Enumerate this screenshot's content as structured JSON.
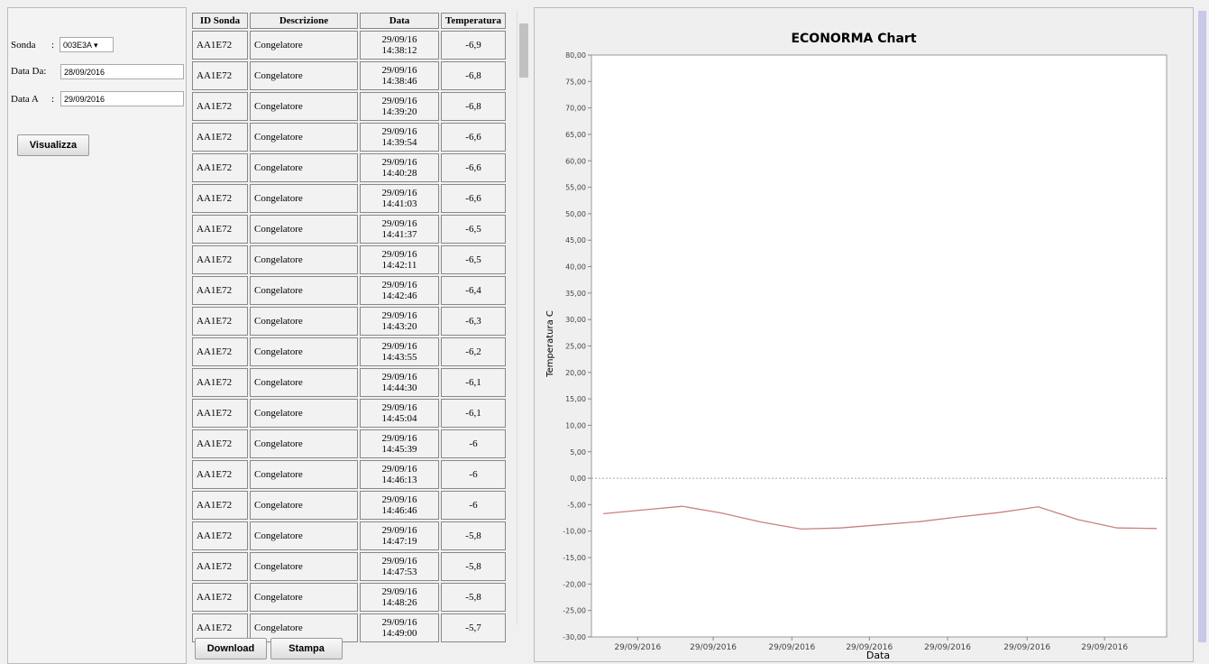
{
  "form": {
    "sonda_label": "Sonda",
    "colon": ":",
    "sonda_value": "003E3A",
    "da_label": "Data Da:",
    "da_value": "28/09/2016",
    "a_label": "Data A",
    "a_value": "29/09/2016",
    "button": "Visualizza"
  },
  "table": {
    "headers": [
      "ID Sonda",
      "Descrizione",
      "Data",
      "Temperatura"
    ],
    "rows": [
      [
        "AA1E72",
        "Congelatore",
        "29/09/16",
        "14:38:12",
        "-6,9"
      ],
      [
        "AA1E72",
        "Congelatore",
        "29/09/16",
        "14:38:46",
        "-6,8"
      ],
      [
        "AA1E72",
        "Congelatore",
        "29/09/16",
        "14:39:20",
        "-6,8"
      ],
      [
        "AA1E72",
        "Congelatore",
        "29/09/16",
        "14:39:54",
        "-6,6"
      ],
      [
        "AA1E72",
        "Congelatore",
        "29/09/16",
        "14:40:28",
        "-6,6"
      ],
      [
        "AA1E72",
        "Congelatore",
        "29/09/16",
        "14:41:03",
        "-6,6"
      ],
      [
        "AA1E72",
        "Congelatore",
        "29/09/16",
        "14:41:37",
        "-6,5"
      ],
      [
        "AA1E72",
        "Congelatore",
        "29/09/16",
        "14:42:11",
        "-6,5"
      ],
      [
        "AA1E72",
        "Congelatore",
        "29/09/16",
        "14:42:46",
        "-6,4"
      ],
      [
        "AA1E72",
        "Congelatore",
        "29/09/16",
        "14:43:20",
        "-6,3"
      ],
      [
        "AA1E72",
        "Congelatore",
        "29/09/16",
        "14:43:55",
        "-6,2"
      ],
      [
        "AA1E72",
        "Congelatore",
        "29/09/16",
        "14:44:30",
        "-6,1"
      ],
      [
        "AA1E72",
        "Congelatore",
        "29/09/16",
        "14:45:04",
        "-6,1"
      ],
      [
        "AA1E72",
        "Congelatore",
        "29/09/16",
        "14:45:39",
        "-6"
      ],
      [
        "AA1E72",
        "Congelatore",
        "29/09/16",
        "14:46:13",
        "-6"
      ],
      [
        "AA1E72",
        "Congelatore",
        "29/09/16",
        "14:46:46",
        "-6"
      ],
      [
        "AA1E72",
        "Congelatore",
        "29/09/16",
        "14:47:19",
        "-5,8"
      ],
      [
        "AA1E72",
        "Congelatore",
        "29/09/16",
        "14:47:53",
        "-5,8"
      ],
      [
        "AA1E72",
        "Congelatore",
        "29/09/16",
        "14:48:26",
        "-5,8"
      ],
      [
        "AA1E72",
        "Congelatore",
        "29/09/16",
        "14:49:00",
        "-5,7"
      ]
    ]
  },
  "buttons": [
    "Download",
    "Stampa"
  ],
  "chart_data": {
    "type": "line",
    "title": "ECONORMA Chart",
    "x_label": "Data",
    "y_label": "Temperatura C",
    "x": [
      0,
      1,
      2,
      3,
      4,
      5,
      6,
      7,
      8,
      9,
      10,
      11,
      12,
      13,
      14
    ],
    "series": [
      {
        "name": "Temperatura",
        "color": "#c98080",
        "values": [
          -6.7,
          -6.0,
          -5.3,
          -6.6,
          -8.3,
          -9.6,
          -9.4,
          -8.8,
          -8.2,
          -7.3,
          -6.5,
          -5.4,
          -7.8,
          -9.4,
          -9.5
        ]
      }
    ],
    "xlim": [
      -0.3,
      14.25
    ],
    "xticks": [
      {
        "value": 0.87,
        "label": "29/09/2016"
      },
      {
        "value": 2.78,
        "label": "29/09/2016"
      },
      {
        "value": 4.77,
        "label": "29/09/2016"
      },
      {
        "value": 6.73,
        "label": "29/09/2016"
      },
      {
        "value": 8.71,
        "label": "29/09/2016"
      },
      {
        "value": 10.72,
        "label": "29/09/2016"
      },
      {
        "value": 12.68,
        "label": "29/09/2016"
      }
    ],
    "ylim": [
      -30,
      80
    ],
    "yticks": [
      {
        "value": -30,
        "label": "-30,00"
      },
      {
        "value": -25,
        "label": "-25,00"
      },
      {
        "value": -20,
        "label": "-20,00"
      },
      {
        "value": -15,
        "label": "-15,00"
      },
      {
        "value": -10,
        "label": "-10,00"
      },
      {
        "value": -5,
        "label": "-5,00"
      },
      {
        "value": 0,
        "label": "0,00"
      },
      {
        "value": 5,
        "label": "5,00"
      },
      {
        "value": 10,
        "label": "10,00"
      },
      {
        "value": 15,
        "label": "15,00"
      },
      {
        "value": 20,
        "label": "20,00"
      },
      {
        "value": 25,
        "label": "25,00"
      },
      {
        "value": 30,
        "label": "30,00"
      },
      {
        "value": 35,
        "label": "35,00"
      },
      {
        "value": 40,
        "label": "40,00"
      },
      {
        "value": 45,
        "label": "45,00"
      },
      {
        "value": 50,
        "label": "50,00"
      },
      {
        "value": 55,
        "label": "55,00"
      },
      {
        "value": 60,
        "label": "60,00"
      },
      {
        "value": 65,
        "label": "65,00"
      },
      {
        "value": 70,
        "label": "70,00"
      },
      {
        "value": 75,
        "label": "75,00"
      },
      {
        "value": 80,
        "label": "80,00"
      }
    ],
    "grid": false
  }
}
